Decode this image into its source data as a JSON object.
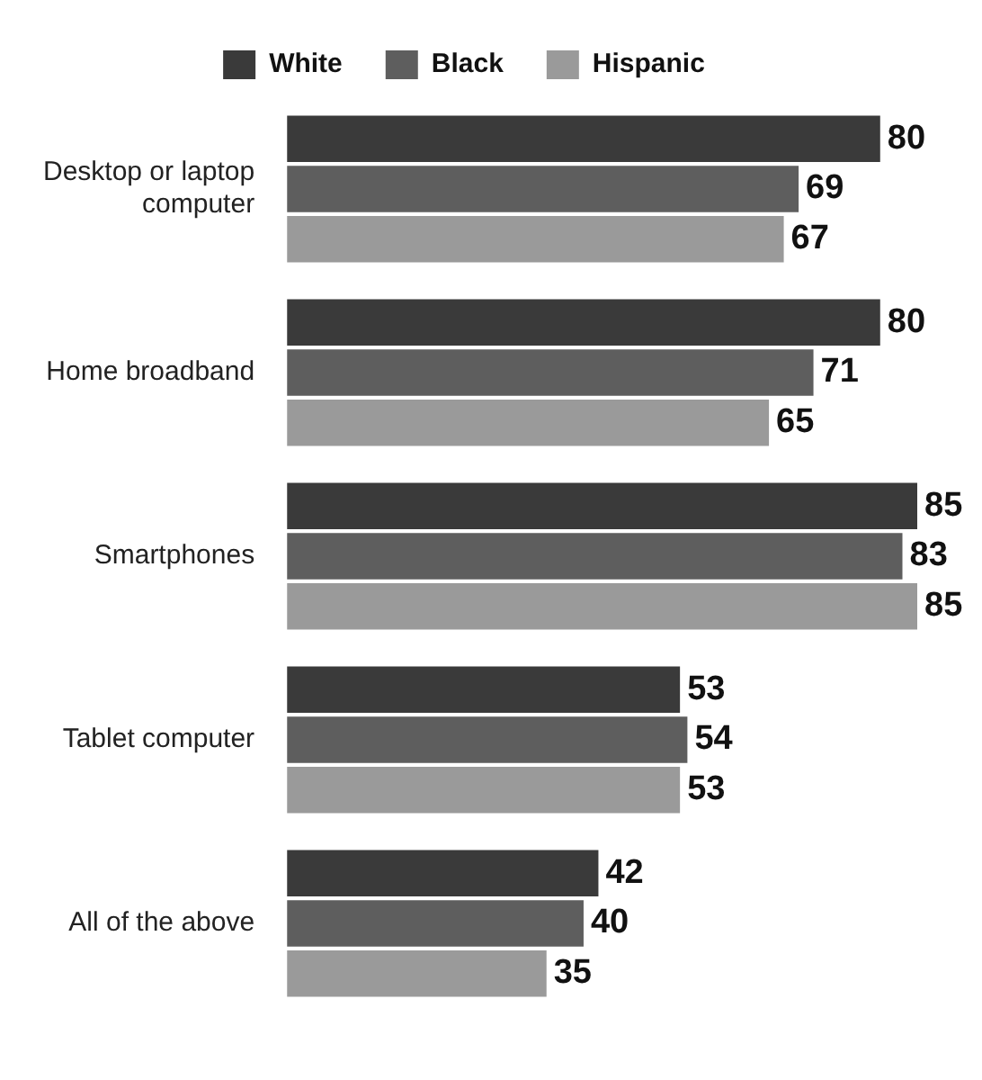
{
  "chart_data": {
    "type": "bar",
    "orientation": "horizontal",
    "categories": [
      "Desktop or laptop computer",
      "Home broadband",
      "Smartphones",
      "Tablet computer",
      "All of the above"
    ],
    "series": [
      {
        "name": "White",
        "color": "#3a3a3a",
        "values": [
          80,
          80,
          85,
          53,
          42
        ]
      },
      {
        "name": "Black",
        "color": "#5e5e5e",
        "values": [
          69,
          71,
          83,
          54,
          40
        ]
      },
      {
        "name": "Hispanic",
        "color": "#9a9a9a",
        "values": [
          67,
          65,
          85,
          53,
          35
        ]
      }
    ],
    "data_labels": true,
    "legend": "top",
    "grid": false,
    "tick_labels": "y"
  }
}
